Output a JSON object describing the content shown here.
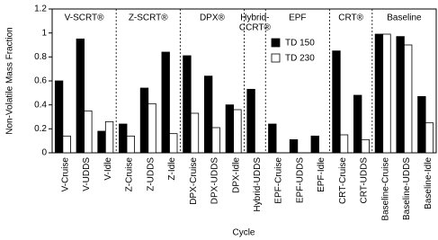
{
  "chart_data": {
    "type": "bar",
    "y_label": "Non-Volatile Mass Fraction",
    "x_label": "Cycle",
    "groups": [
      {
        "name": "V-SCRT®",
        "categories": [
          "V-Cruise",
          "V-UDDS",
          "V-Idle"
        ]
      },
      {
        "name": "Z-SCRT®",
        "categories": [
          "Z-Cruise",
          "Z-UDDS",
          "Z-Idle"
        ]
      },
      {
        "name": "DPX®",
        "categories": [
          "DPX-Cruise",
          "DPX-UDDS",
          "DPX-Idle"
        ]
      },
      {
        "name": [
          "Hybrid-",
          "CCRT®"
        ],
        "categories": [
          "Hybrid-UDDS"
        ]
      },
      {
        "name": "EPF",
        "categories": [
          "EPF-Cruise",
          "EPF-UDDS",
          "EPF-Idle"
        ]
      },
      {
        "name": "CRT®",
        "categories": [
          "CRT-Cruise",
          "CRT-UDDS"
        ]
      },
      {
        "name": "Baseline",
        "categories": [
          "Baseline-Cruise",
          "Baseline-UDDS",
          "Baseline-Idle"
        ]
      }
    ],
    "series": [
      {
        "name": "TD 150",
        "color": "#000000",
        "values": [
          0.6,
          0.95,
          0.18,
          0.24,
          0.54,
          0.84,
          0.81,
          0.64,
          0.4,
          0.53,
          0.24,
          0.11,
          0.14,
          0.85,
          0.48,
          0.99,
          0.97,
          0.47
        ]
      },
      {
        "name": "TD 230",
        "color": "#ffffff",
        "values": [
          0.14,
          0.35,
          0.26,
          0.14,
          0.41,
          0.16,
          0.33,
          0.21,
          0.36,
          null,
          null,
          null,
          null,
          0.15,
          0.11,
          0.99,
          0.9,
          0.25
        ]
      }
    ],
    "ylim": [
      0,
      1.2
    ],
    "yticks": [
      0,
      0.2,
      0.4,
      0.6,
      0.8,
      1,
      1.2
    ],
    "legend": "upper-middle"
  }
}
